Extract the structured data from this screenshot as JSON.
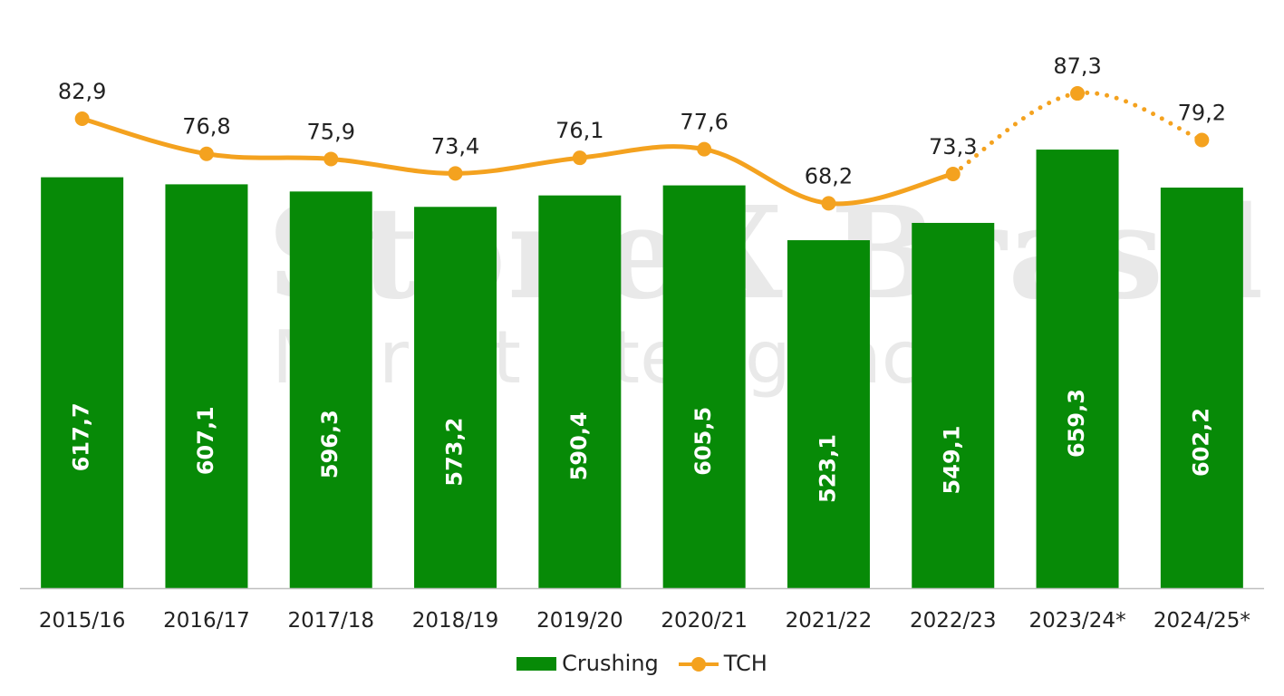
{
  "watermark": {
    "line1": "StoneX Brasil",
    "line2": "Market Intelligence"
  },
  "colors": {
    "bar": "#078a07",
    "line": "#f4a21f",
    "bar_label": "#ffffff",
    "text": "#222222",
    "axis": "#bfbfbf"
  },
  "chart_data": {
    "type": "bar",
    "categories": [
      "2015/16",
      "2016/17",
      "2017/18",
      "2018/19",
      "2019/20",
      "2020/21",
      "2021/22",
      "2022/23",
      "2023/24*",
      "2024/25*"
    ],
    "series": [
      {
        "name": "Crushing",
        "type": "bar",
        "values": [
          617.7,
          607.1,
          596.3,
          573.2,
          590.4,
          605.5,
          523.1,
          549.1,
          659.3,
          602.2
        ],
        "labels": [
          "617,7",
          "607,1",
          "596,3",
          "573,2",
          "590,4",
          "605,5",
          "523,1",
          "549,1",
          "659,3",
          "602,2"
        ]
      },
      {
        "name": "TCH",
        "type": "line",
        "values": [
          82.9,
          76.8,
          75.9,
          73.4,
          76.1,
          77.6,
          68.2,
          73.3,
          87.3,
          79.2
        ],
        "labels": [
          "82,9",
          "76,8",
          "75,9",
          "73,4",
          "76,1",
          "77,6",
          "68,2",
          "73,3",
          "87,3",
          "79,2"
        ],
        "projected_from_index": 7
      }
    ],
    "legend": {
      "position": "bottom",
      "entries": [
        "Crushing",
        "TCH"
      ]
    },
    "grid": false
  }
}
